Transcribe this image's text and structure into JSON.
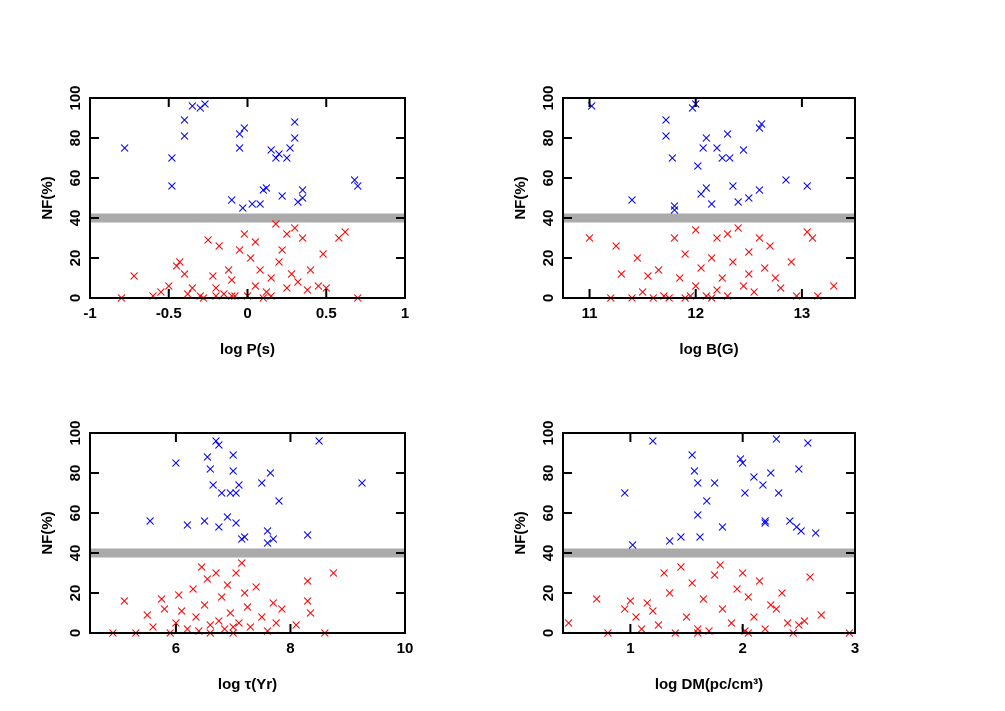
{
  "chart_data": [
    {
      "type": "scatter",
      "xlabel": "log P(s)",
      "ylabel": "NF(%)",
      "xlim": [
        -1,
        1
      ],
      "ylim": [
        0,
        100
      ],
      "xticks": [
        -1,
        -0.5,
        0,
        0.5,
        1
      ],
      "yticks": [
        0,
        20,
        40,
        60,
        80,
        100
      ],
      "hline": {
        "value": 40,
        "color": "#aaaaaa"
      },
      "series": [
        {
          "color": "#0000ff",
          "x": [
            -0.78,
            -0.48,
            -0.48,
            -0.4,
            -0.4,
            -0.35,
            -0.3,
            -0.27,
            -0.1,
            -0.05,
            -0.05,
            -0.02,
            -0.03,
            0.03,
            0.08,
            0.1,
            0.12,
            0.15,
            0.18,
            0.2,
            0.22,
            0.25,
            0.27,
            0.3,
            0.3,
            0.32,
            0.35,
            0.35,
            0.68,
            0.7
          ],
          "values": [
            75,
            70,
            56,
            89,
            81,
            96,
            95,
            97,
            49,
            82,
            75,
            85,
            45,
            47,
            47,
            54,
            55,
            74,
            70,
            72,
            51,
            70,
            75,
            88,
            80,
            48,
            50,
            54,
            59,
            56
          ]
        },
        {
          "color": "#ff0000",
          "x": [
            -0.8,
            -0.72,
            -0.6,
            -0.55,
            -0.5,
            -0.45,
            -0.43,
            -0.4,
            -0.38,
            -0.3,
            -0.28,
            -0.25,
            -0.22,
            -0.2,
            -0.18,
            -0.15,
            -0.12,
            -0.1,
            -0.08,
            -0.05,
            -0.02,
            0,
            0.02,
            0.05,
            0.05,
            0.08,
            0.1,
            0.12,
            0.15,
            0.18,
            0.2,
            0.22,
            0.25,
            0.25,
            0.28,
            0.3,
            0.32,
            0.35,
            0.38,
            0.4,
            0.45,
            0.48,
            0.5,
            0.58,
            0.62,
            0.7,
            -0.35,
            -0.2,
            0.15,
            -0.1
          ],
          "values": [
            0,
            11,
            1,
            3,
            6,
            16,
            18,
            12,
            2,
            1,
            0,
            29,
            11,
            5,
            26,
            2,
            14,
            9,
            1,
            24,
            32,
            1,
            20,
            6,
            28,
            14,
            0,
            3,
            10,
            37,
            18,
            24,
            32,
            5,
            12,
            35,
            8,
            30,
            4,
            14,
            6,
            22,
            5,
            30,
            33,
            0,
            5,
            1,
            1,
            1
          ]
        }
      ]
    },
    {
      "type": "scatter",
      "xlabel": "log B(G)",
      "ylabel": "NF(%)",
      "xlim": [
        10.75,
        13.5
      ],
      "ylim": [
        0,
        100
      ],
      "xticks": [
        11,
        12,
        13
      ],
      "yticks": [
        0,
        20,
        40,
        60,
        80,
        100
      ],
      "hline": {
        "value": 40,
        "color": "#aaaaaa"
      },
      "series": [
        {
          "color": "#0000ff",
          "x": [
            11.02,
            11.4,
            11.72,
            11.72,
            11.78,
            11.8,
            11.8,
            11.97,
            12,
            12.02,
            12.05,
            12.07,
            12.1,
            12.1,
            12.15,
            12.2,
            12.25,
            12.3,
            12.32,
            12.35,
            12.4,
            12.45,
            12.5,
            12.6,
            12.6,
            12.62,
            12.85,
            13.05
          ],
          "values": [
            96,
            49,
            89,
            81,
            70,
            46,
            44,
            95,
            97,
            66,
            52,
            75,
            80,
            55,
            47,
            75,
            70,
            82,
            70,
            56,
            48,
            74,
            50,
            54,
            85,
            87,
            59,
            56
          ]
        },
        {
          "color": "#ff0000",
          "x": [
            11,
            11.2,
            11.25,
            11.3,
            11.4,
            11.45,
            11.5,
            11.55,
            11.6,
            11.65,
            11.7,
            11.75,
            11.8,
            11.85,
            11.9,
            11.95,
            12,
            12,
            12.05,
            12.1,
            12.15,
            12.2,
            12.2,
            12.25,
            12.3,
            12.3,
            12.35,
            12.4,
            12.45,
            12.5,
            12.5,
            12.55,
            12.6,
            12.65,
            12.7,
            12.75,
            12.8,
            12.9,
            12.95,
            13.05,
            13.1,
            13.15,
            13.3,
            11.9,
            12.15
          ],
          "values": [
            30,
            0,
            26,
            12,
            0,
            20,
            3,
            11,
            0,
            14,
            1,
            0,
            30,
            10,
            22,
            1,
            6,
            34,
            15,
            1,
            20,
            30,
            4,
            10,
            32,
            1,
            18,
            35,
            6,
            12,
            23,
            3,
            30,
            15,
            26,
            10,
            5,
            18,
            1,
            33,
            30,
            1,
            6,
            0,
            0
          ]
        }
      ]
    },
    {
      "type": "scatter",
      "xlabel": "log τ(Yr)",
      "ylabel": "NF(%)",
      "xlim": [
        4.5,
        10
      ],
      "ylim": [
        0,
        100
      ],
      "xticks": [
        6,
        8,
        10
      ],
      "yticks": [
        0,
        20,
        40,
        60,
        80,
        100
      ],
      "hline": {
        "value": 40,
        "color": "#aaaaaa"
      },
      "series": [
        {
          "color": "#0000ff",
          "x": [
            5.55,
            6,
            6.2,
            6.5,
            6.55,
            6.6,
            6.65,
            6.7,
            6.75,
            6.8,
            6.75,
            6.9,
            6.95,
            7,
            7,
            7.05,
            7.05,
            7.1,
            7.15,
            7.2,
            7.5,
            7.6,
            7.6,
            7.65,
            7.7,
            7.8,
            8.3,
            8.5,
            9.25
          ],
          "values": [
            56,
            85,
            54,
            56,
            88,
            82,
            74,
            96,
            94,
            70,
            53,
            58,
            70,
            89,
            81,
            70,
            55,
            74,
            47,
            48,
            75,
            51,
            45,
            80,
            47,
            66,
            49,
            96,
            75
          ]
        },
        {
          "color": "#ff0000",
          "x": [
            4.9,
            5.1,
            5.3,
            5.5,
            5.6,
            5.75,
            5.8,
            5.9,
            6,
            6.05,
            6.1,
            6.2,
            6.3,
            6.35,
            6.4,
            6.45,
            6.5,
            6.55,
            6.6,
            6.7,
            6.75,
            6.8,
            6.85,
            6.9,
            6.95,
            7,
            7.05,
            7.1,
            7.15,
            7.2,
            7.25,
            7.3,
            7.4,
            7.5,
            7.6,
            7.7,
            7.75,
            7.85,
            8.1,
            8.3,
            8.3,
            8.35,
            8.6,
            8.75,
            7,
            6.6
          ],
          "values": [
            0,
            16,
            0,
            9,
            3,
            17,
            12,
            0,
            5,
            19,
            11,
            2,
            22,
            8,
            1,
            33,
            14,
            27,
            0,
            30,
            6,
            18,
            2,
            24,
            10,
            0,
            30,
            5,
            35,
            20,
            13,
            3,
            23,
            8,
            1,
            15,
            5,
            12,
            4,
            26,
            16,
            10,
            0,
            30,
            3,
            4
          ]
        }
      ]
    },
    {
      "type": "scatter",
      "xlabel": "log DM(pc/cm³)",
      "ylabel": "NF(%)",
      "xlim": [
        0.4,
        3
      ],
      "ylim": [
        0,
        100
      ],
      "xticks": [
        1,
        2,
        3
      ],
      "yticks": [
        0,
        20,
        40,
        60,
        80,
        100
      ],
      "hline": {
        "value": 40,
        "color": "#aaaaaa"
      },
      "series": [
        {
          "color": "#0000ff",
          "x": [
            0.95,
            1.02,
            1.2,
            1.35,
            1.45,
            1.55,
            1.57,
            1.6,
            1.6,
            1.62,
            1.68,
            1.75,
            1.82,
            1.98,
            2,
            2.02,
            2.1,
            2.18,
            2.2,
            2.2,
            2.25,
            2.3,
            2.32,
            2.42,
            2.48,
            2.5,
            2.52,
            2.58,
            2.65
          ],
          "values": [
            70,
            44,
            96,
            46,
            48,
            89,
            81,
            59,
            75,
            48,
            66,
            75,
            53,
            87,
            85,
            70,
            78,
            74,
            55,
            56,
            80,
            97,
            70,
            56,
            53,
            82,
            51,
            95,
            50
          ]
        },
        {
          "color": "#ff0000",
          "x": [
            0.45,
            0.7,
            0.8,
            0.95,
            1,
            1.05,
            1.1,
            1.15,
            1.2,
            1.25,
            1.3,
            1.35,
            1.4,
            1.45,
            1.5,
            1.55,
            1.6,
            1.65,
            1.7,
            1.75,
            1.8,
            1.82,
            1.9,
            1.95,
            2,
            2.02,
            2.05,
            2.1,
            2.15,
            2.2,
            2.25,
            2.3,
            2.35,
            2.4,
            2.45,
            2.5,
            2.55,
            2.6,
            2.7,
            2.95,
            1.6,
            2.05
          ],
          "values": [
            5,
            17,
            0,
            12,
            16,
            8,
            2,
            15,
            11,
            4,
            30,
            20,
            0,
            33,
            8,
            25,
            2,
            17,
            1,
            29,
            34,
            12,
            5,
            22,
            30,
            1,
            18,
            8,
            26,
            2,
            14,
            12,
            20,
            5,
            0,
            4,
            6,
            28,
            9,
            0,
            0,
            0
          ]
        }
      ]
    }
  ]
}
